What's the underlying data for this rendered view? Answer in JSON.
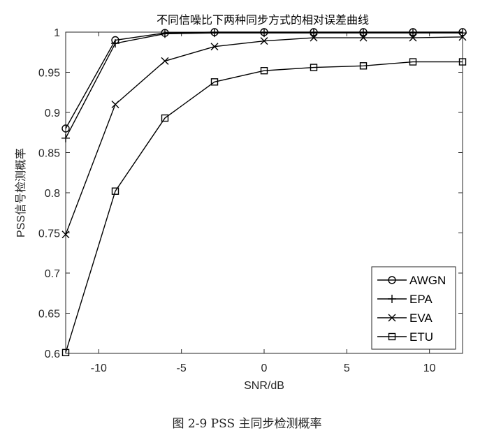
{
  "chart_data": {
    "type": "line",
    "title": "不同信噪比下两种同步方式的相对误差曲线",
    "xlabel": "SNR/dB",
    "ylabel": "PSS信号检测概率",
    "xlim": [
      -12,
      12
    ],
    "ylim": [
      0.6,
      1.0
    ],
    "xticks": [
      -10,
      -5,
      0,
      5,
      10
    ],
    "yticks": [
      0.6,
      0.65,
      0.7,
      0.75,
      0.8,
      0.85,
      0.9,
      0.95,
      1
    ],
    "ytick_labels": [
      "0.6",
      "0.65",
      "0.7",
      "0.75",
      "0.8",
      "0.85",
      "0.9",
      "0.95",
      "1"
    ],
    "xtick_labels": [
      "-10",
      "-5",
      "0",
      "5",
      "10"
    ],
    "grid": false,
    "legend_position": "bottom-right",
    "x": [
      -12,
      -9,
      -6,
      -3,
      0,
      3,
      6,
      9,
      12
    ],
    "series": [
      {
        "name": "AWGN",
        "marker": "circle",
        "values": [
          0.88,
          0.99,
          0.999,
          1.0,
          1.0,
          1.0,
          1.0,
          1.0,
          1.0
        ]
      },
      {
        "name": "EPA",
        "marker": "plus",
        "values": [
          0.868,
          0.986,
          0.998,
          0.999,
          0.999,
          0.999,
          0.999,
          0.999,
          0.999
        ]
      },
      {
        "name": "EVA",
        "marker": "x",
        "values": [
          0.748,
          0.91,
          0.964,
          0.982,
          0.989,
          0.993,
          0.993,
          0.993,
          0.994
        ]
      },
      {
        "name": "ETU",
        "marker": "square",
        "values": [
          0.601,
          0.802,
          0.893,
          0.938,
          0.952,
          0.956,
          0.958,
          0.963,
          0.963
        ]
      }
    ],
    "color": "#000000"
  },
  "caption": "图 2-9 PSS 主同步检测概率"
}
